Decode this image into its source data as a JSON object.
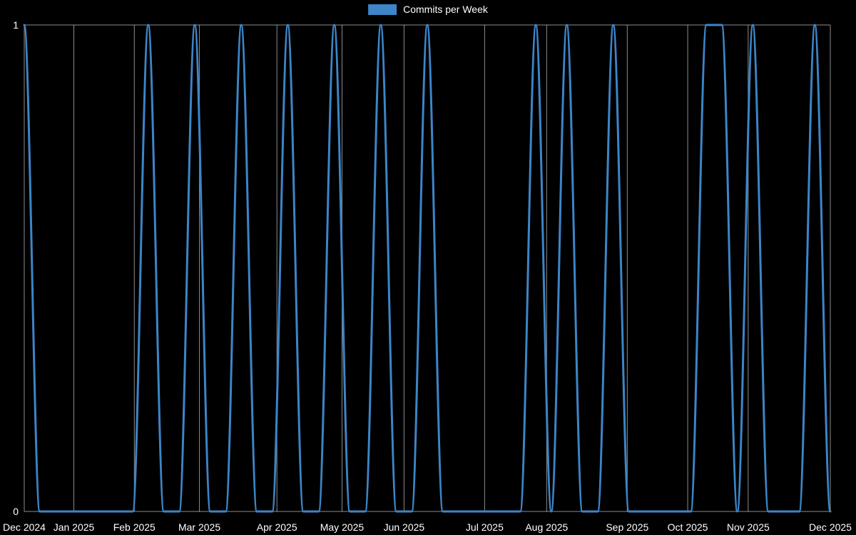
{
  "colors": {
    "background": "#000000",
    "line": "#3d85c8",
    "grid": "rgba(255,255,255,0.55)",
    "text": "#ffffff"
  },
  "legend": {
    "label": "Commits per Week"
  },
  "chart_data": {
    "type": "line",
    "title": "",
    "xlabel": "",
    "ylabel": "",
    "grid": true,
    "legend_position": "top",
    "ylim": [
      0,
      1
    ],
    "y_ticks": [
      0,
      1
    ],
    "xlim_weeks": [
      0,
      52
    ],
    "x_unit": "week",
    "x_tick_labels": [
      "Dec 2024",
      "Jan 2025",
      "Feb 2025",
      "Mar 2025",
      "Apr 2025",
      "May 2025",
      "Jun 2025",
      "Jul 2025",
      "Aug 2025",
      "Sep 2025",
      "Oct 2025",
      "Nov 2025",
      "Dec 2025"
    ],
    "x_tick_positions": [
      0,
      3.2,
      7.1,
      11.3,
      16.3,
      20.5,
      24.5,
      29.7,
      33.7,
      38.9,
      42.8,
      46.7,
      52
    ],
    "series": [
      {
        "name": "Commits per Week",
        "color": "#3d85c8",
        "values": [
          1,
          0,
          0,
          0,
          0,
          0,
          0,
          0,
          1,
          0,
          0,
          1,
          0,
          0,
          1,
          0,
          0,
          1,
          0,
          0,
          1,
          0,
          0,
          1,
          0,
          0,
          1,
          0,
          0,
          0,
          0,
          0,
          0,
          1,
          0,
          1,
          0,
          0,
          1,
          0,
          0,
          0,
          0,
          0,
          1,
          1,
          0,
          1,
          0,
          0,
          0,
          1,
          0
        ]
      }
    ]
  }
}
